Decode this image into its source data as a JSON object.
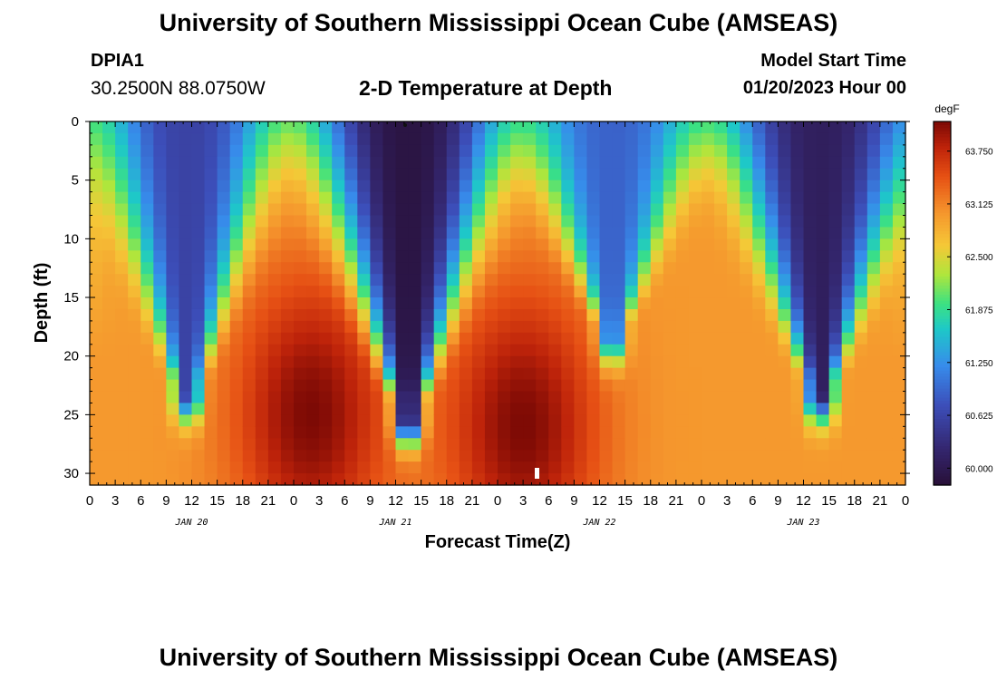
{
  "header": {
    "title": "University of Southern Mississippi Ocean Cube (AMSEAS)",
    "station_id": "DPIA1",
    "coordinates": "30.2500N  88.0750W",
    "subtitle": "2-D Temperature at Depth",
    "model_start_label": "Model Start Time",
    "model_start_value": "01/20/2023 Hour 00"
  },
  "footer": {
    "title": "University of Southern Mississippi Ocean Cube (AMSEAS)"
  },
  "chart_data": {
    "type": "heatmap",
    "title": "2-D Temperature at Depth",
    "xlabel": "Forecast Time(Z)",
    "ylabel": "Depth (ft)",
    "x_range_hours": [
      0,
      96
    ],
    "y_range_ft": [
      0,
      31
    ],
    "x_tick_labels": [
      "0",
      "3",
      "6",
      "9",
      "12",
      "15",
      "18",
      "21",
      "0",
      "3",
      "6",
      "9",
      "12",
      "15",
      "18",
      "21",
      "0",
      "3",
      "6",
      "9",
      "12",
      "15",
      "18",
      "21",
      "0",
      "3",
      "6",
      "9",
      "12",
      "15",
      "18",
      "21",
      "0"
    ],
    "date_labels": [
      {
        "text": "JAN 20",
        "hour": 12
      },
      {
        "text": "JAN 21",
        "hour": 36
      },
      {
        "text": "JAN 22",
        "hour": 60
      },
      {
        "text": "JAN 23",
        "hour": 84
      }
    ],
    "y_ticks": [
      0,
      5,
      10,
      15,
      20,
      25,
      30
    ],
    "y_tick_labels": [
      "0",
      "5",
      "10",
      "15",
      "20",
      "25",
      "30"
    ],
    "colorbar": {
      "unit": "degF",
      "min": 59.8,
      "max": 64.1,
      "ticks": [
        60.0,
        60.625,
        61.25,
        61.875,
        62.5,
        63.125,
        63.75
      ],
      "tick_labels": [
        "60.000",
        "60.625",
        "61.250",
        "61.875",
        "62.500",
        "63.125",
        "63.750"
      ]
    },
    "grid": {
      "columns": 64,
      "rows": 31,
      "valleys": [
        {
          "center_hour": 11.5,
          "bottom_depth": 23,
          "top_half_width": 9,
          "core_temp": 60.6
        },
        {
          "center_hour": 37.5,
          "bottom_depth": 25,
          "top_half_width": 10,
          "core_temp": 59.9
        },
        {
          "center_hour": 61.5,
          "bottom_depth": 18,
          "top_half_width": 9,
          "core_temp": 60.9
        },
        {
          "center_hour": 86.0,
          "bottom_depth": 23,
          "top_half_width": 10,
          "core_temp": 60.1
        }
      ],
      "warm_cores": [
        {
          "center_hour": 26.0,
          "depth": 25,
          "temp": 64.1
        },
        {
          "center_hour": 51.0,
          "depth": 26,
          "temp": 64.1
        }
      ],
      "background_temp": 63.0
    }
  }
}
